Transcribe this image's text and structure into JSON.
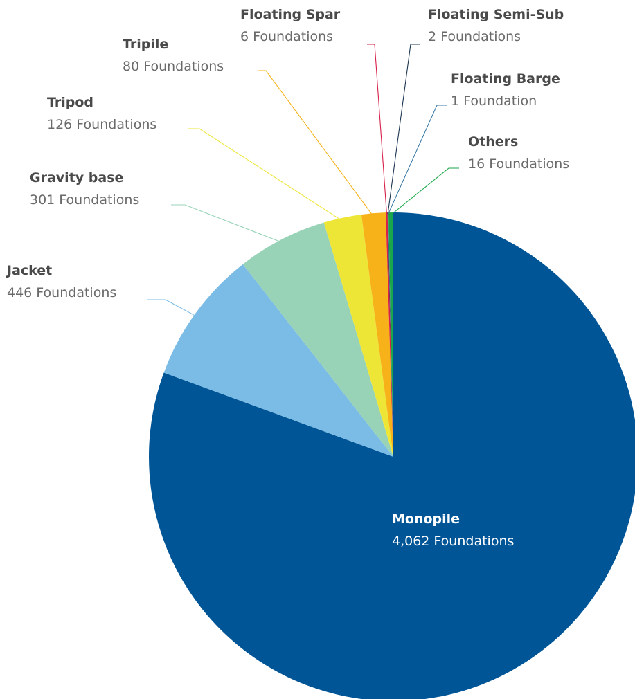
{
  "chart_data": {
    "type": "pie",
    "title": "",
    "start_angle_deg": 0,
    "direction": "clockwise",
    "slices": [
      {
        "name": "Monopile",
        "count_label": "4,062 Foundations",
        "value": 4062,
        "color": "#005596"
      },
      {
        "name": "Jacket",
        "count_label": "446 Foundations",
        "value": 446,
        "color": "#7bbce6"
      },
      {
        "name": "Gravity base",
        "count_label": "301 Foundations",
        "value": 301,
        "color": "#98d3b7"
      },
      {
        "name": "Tripod",
        "count_label": "126 Foundations",
        "value": 126,
        "color": "#ede637"
      },
      {
        "name": "Tripile",
        "count_label": "80 Foundations",
        "value": 80,
        "color": "#f7b21a"
      },
      {
        "name": "Floating Spar",
        "count_label": "6 Foundations",
        "value": 6,
        "color": "#d7204a"
      },
      {
        "name": "Floating Semi-Sub",
        "count_label": "2 Foundations",
        "value": 2,
        "color": "#1c3550"
      },
      {
        "name": "Floating Barge",
        "count_label": "1 Foundation",
        "value": 1,
        "color": "#3c7aa6"
      },
      {
        "name": "Others",
        "count_label": "16 Foundations",
        "value": 16,
        "color": "#1aa64a"
      }
    ]
  }
}
